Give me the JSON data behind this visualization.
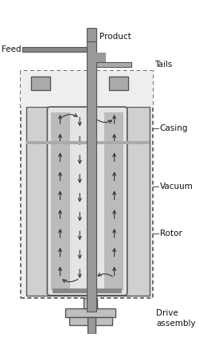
{
  "fig_width": 2.5,
  "fig_height": 4.53,
  "dpi": 100,
  "bg_color": "#ffffff",
  "labels": {
    "product": "Product",
    "feed": "Feed",
    "tails": "Tails",
    "casing": "Casing",
    "vacuum": "Vacuum",
    "rotor": "Rotor",
    "drive": "Drive\nassembly"
  },
  "colors": {
    "dotted_border": "#555555",
    "arrow": "#333333",
    "small_box": "#aaaaaa",
    "drive_fill": "#c0c0c0",
    "shaft_fill": "#999999",
    "outer_fill": "#eeeeee",
    "inner_fill": "#d0d0d0",
    "rotor_fill": "#e4e4e4",
    "rotor_dark": "#bbbbbb",
    "pipe_fill": "#999999",
    "sep_bar": "#aaaaaa",
    "label_color": "#111111",
    "edge_color": "#555555"
  },
  "font_size": 7.5
}
